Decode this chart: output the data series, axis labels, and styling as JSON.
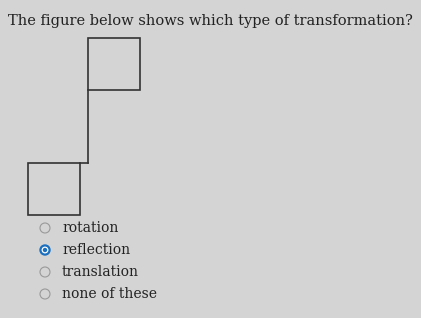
{
  "title": "The figure below shows which type of transformation?",
  "title_fontsize": 10.5,
  "bg_color": "#d4d4d4",
  "shape_color": "#333333",
  "shape_linewidth": 1.2,
  "options": [
    {
      "label": "rotation",
      "selected": false
    },
    {
      "label": "reflection",
      "selected": true
    },
    {
      "label": "translation",
      "selected": false
    },
    {
      "label": "none of these",
      "selected": false
    }
  ],
  "option_fontsize": 10,
  "radio_color_selected": "#1a6fbf",
  "radio_color_unselected": "#999999",
  "text_color": "#222222"
}
